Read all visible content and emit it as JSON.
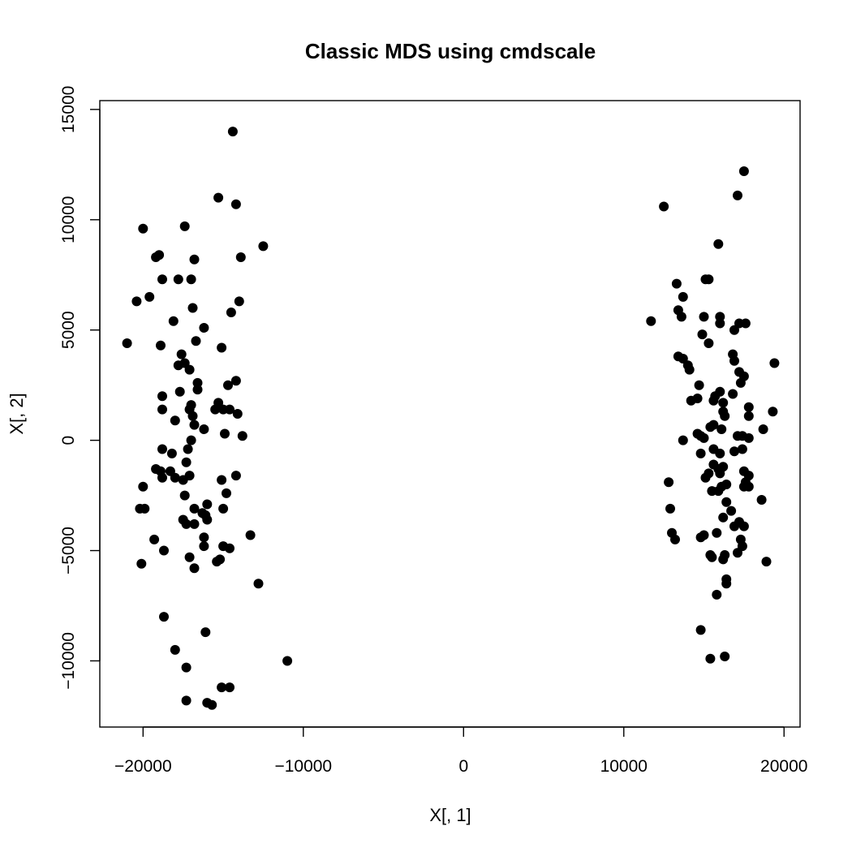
{
  "chart_data": {
    "type": "scatter",
    "title": "Classic MDS using cmdscale",
    "xlabel": "X[, 1]",
    "ylabel": "X[, 2]",
    "xlim": [
      -22700,
      21000
    ],
    "ylim": [
      -13000,
      15400
    ],
    "xticks": [
      -20000,
      -10000,
      0,
      10000,
      20000
    ],
    "yticks": [
      -10000,
      -5000,
      0,
      5000,
      10000,
      15000
    ],
    "x_tick_labels": [
      "−20000",
      "−10000",
      "0",
      "10000",
      "20000"
    ],
    "y_tick_labels": [
      "−10000",
      "−5000",
      "0",
      "5000",
      "10000",
      "15000"
    ],
    "grid": false,
    "marker_color": "#000000",
    "points": [
      [
        -14400,
        14000
      ],
      [
        -15300,
        11000
      ],
      [
        -14200,
        10700
      ],
      [
        -20000,
        9600
      ],
      [
        -17400,
        9700
      ],
      [
        -12500,
        8800
      ],
      [
        -19200,
        8300
      ],
      [
        -19000,
        8400
      ],
      [
        -16800,
        8200
      ],
      [
        -13900,
        8300
      ],
      [
        -18800,
        7300
      ],
      [
        -17800,
        7300
      ],
      [
        -17000,
        7300
      ],
      [
        -20400,
        6300
      ],
      [
        -19600,
        6500
      ],
      [
        -14000,
        6300
      ],
      [
        -16900,
        6000
      ],
      [
        -14500,
        5800
      ],
      [
        -18100,
        5400
      ],
      [
        -16200,
        5100
      ],
      [
        -21000,
        4400
      ],
      [
        -18900,
        4300
      ],
      [
        -16700,
        4500
      ],
      [
        -15100,
        4200
      ],
      [
        -17600,
        3900
      ],
      [
        -17400,
        3500
      ],
      [
        -17800,
        3400
      ],
      [
        -17100,
        3200
      ],
      [
        -14200,
        2700
      ],
      [
        -16600,
        2600
      ],
      [
        -14700,
        2500
      ],
      [
        -16600,
        2300
      ],
      [
        -17700,
        2200
      ],
      [
        -18800,
        2000
      ],
      [
        -15300,
        1700
      ],
      [
        -17000,
        1600
      ],
      [
        -17100,
        1400
      ],
      [
        -15500,
        1400
      ],
      [
        -15000,
        1400
      ],
      [
        -18800,
        1400
      ],
      [
        -14600,
        1400
      ],
      [
        -16900,
        1100
      ],
      [
        -14100,
        1200
      ],
      [
        -18000,
        900
      ],
      [
        -16800,
        700
      ],
      [
        -16200,
        500
      ],
      [
        -14900,
        300
      ],
      [
        -13800,
        200
      ],
      [
        -17000,
        0
      ],
      [
        -18800,
        -400
      ],
      [
        -17200,
        -400
      ],
      [
        -18200,
        -600
      ],
      [
        -17300,
        -1000
      ],
      [
        -19200,
        -1300
      ],
      [
        -18900,
        -1400
      ],
      [
        -18300,
        -1400
      ],
      [
        -14200,
        -1600
      ],
      [
        -17100,
        -1600
      ],
      [
        -18800,
        -1700
      ],
      [
        -18000,
        -1700
      ],
      [
        -17500,
        -1800
      ],
      [
        -15100,
        -1800
      ],
      [
        -20000,
        -2100
      ],
      [
        -14800,
        -2400
      ],
      [
        -17400,
        -2500
      ],
      [
        -20200,
        -3100
      ],
      [
        -19900,
        -3100
      ],
      [
        -16000,
        -2900
      ],
      [
        -15000,
        -3100
      ],
      [
        -16800,
        -3100
      ],
      [
        -16100,
        -3400
      ],
      [
        -16300,
        -3300
      ],
      [
        -17500,
        -3600
      ],
      [
        -16000,
        -3600
      ],
      [
        -17300,
        -3800
      ],
      [
        -16800,
        -3800
      ],
      [
        -13300,
        -4300
      ],
      [
        -16200,
        -4400
      ],
      [
        -19300,
        -4500
      ],
      [
        -15000,
        -4800
      ],
      [
        -16200,
        -4800
      ],
      [
        -14600,
        -4900
      ],
      [
        -18700,
        -5000
      ],
      [
        -17100,
        -5300
      ],
      [
        -15200,
        -5400
      ],
      [
        -15400,
        -5500
      ],
      [
        -20100,
        -5600
      ],
      [
        -16800,
        -5800
      ],
      [
        -12800,
        -6500
      ],
      [
        -18700,
        -8000
      ],
      [
        -16100,
        -8700
      ],
      [
        -18000,
        -9500
      ],
      [
        -11000,
        -10000
      ],
      [
        -17300,
        -10300
      ],
      [
        -15100,
        -11200
      ],
      [
        -14600,
        -11200
      ],
      [
        -17300,
        -11800
      ],
      [
        -16000,
        -11900
      ],
      [
        -15700,
        -12000
      ],
      [
        17500,
        12200
      ],
      [
        17100,
        11100
      ],
      [
        12500,
        10600
      ],
      [
        15900,
        8900
      ],
      [
        13300,
        7100
      ],
      [
        15100,
        7300
      ],
      [
        15300,
        7300
      ],
      [
        13700,
        6500
      ],
      [
        13400,
        5900
      ],
      [
        11700,
        5400
      ],
      [
        13600,
        5600
      ],
      [
        15000,
        5600
      ],
      [
        16000,
        5600
      ],
      [
        16000,
        5300
      ],
      [
        17200,
        5300
      ],
      [
        17600,
        5300
      ],
      [
        16900,
        5000
      ],
      [
        14900,
        4800
      ],
      [
        15300,
        4400
      ],
      [
        13400,
        3800
      ],
      [
        13700,
        3700
      ],
      [
        16800,
        3900
      ],
      [
        14000,
        3400
      ],
      [
        14100,
        3200
      ],
      [
        19400,
        3500
      ],
      [
        16900,
        3600
      ],
      [
        17200,
        3100
      ],
      [
        17500,
        2900
      ],
      [
        17300,
        2600
      ],
      [
        14700,
        2500
      ],
      [
        16000,
        2200
      ],
      [
        16800,
        2100
      ],
      [
        15700,
        2000
      ],
      [
        15600,
        1800
      ],
      [
        14600,
        1900
      ],
      [
        14200,
        1800
      ],
      [
        16200,
        1700
      ],
      [
        17800,
        1500
      ],
      [
        16200,
        1300
      ],
      [
        19300,
        1300
      ],
      [
        17800,
        1100
      ],
      [
        16300,
        1100
      ],
      [
        15600,
        700
      ],
      [
        15400,
        600
      ],
      [
        16100,
        500
      ],
      [
        18700,
        500
      ],
      [
        14600,
        300
      ],
      [
        15000,
        100
      ],
      [
        14800,
        200
      ],
      [
        13700,
        0
      ],
      [
        17400,
        200
      ],
      [
        17100,
        200
      ],
      [
        17800,
        100
      ],
      [
        15600,
        -400
      ],
      [
        16900,
        -500
      ],
      [
        17400,
        -400
      ],
      [
        14800,
        -600
      ],
      [
        16000,
        -600
      ],
      [
        15600,
        -1100
      ],
      [
        15900,
        -1300
      ],
      [
        16200,
        -1200
      ],
      [
        17500,
        -1400
      ],
      [
        15300,
        -1500
      ],
      [
        16000,
        -1500
      ],
      [
        15100,
        -1700
      ],
      [
        17800,
        -1600
      ],
      [
        17600,
        -1900
      ],
      [
        12800,
        -1900
      ],
      [
        16400,
        -2000
      ],
      [
        16100,
        -2100
      ],
      [
        15900,
        -2300
      ],
      [
        15500,
        -2300
      ],
      [
        17500,
        -2100
      ],
      [
        17800,
        -2100
      ],
      [
        18600,
        -2700
      ],
      [
        12900,
        -3100
      ],
      [
        16400,
        -2800
      ],
      [
        16700,
        -3200
      ],
      [
        16200,
        -3500
      ],
      [
        17200,
        -3700
      ],
      [
        17500,
        -3900
      ],
      [
        16900,
        -3900
      ],
      [
        13000,
        -4200
      ],
      [
        13200,
        -4500
      ],
      [
        15800,
        -4200
      ],
      [
        15000,
        -4300
      ],
      [
        14800,
        -4400
      ],
      [
        17300,
        -4500
      ],
      [
        17400,
        -4800
      ],
      [
        17100,
        -5100
      ],
      [
        15400,
        -5200
      ],
      [
        16300,
        -5200
      ],
      [
        15500,
        -5300
      ],
      [
        16200,
        -5400
      ],
      [
        18900,
        -5500
      ],
      [
        16400,
        -6300
      ],
      [
        16400,
        -6500
      ],
      [
        15800,
        -7000
      ],
      [
        14800,
        -8600
      ],
      [
        15400,
        -9900
      ],
      [
        16300,
        -9800
      ]
    ]
  }
}
